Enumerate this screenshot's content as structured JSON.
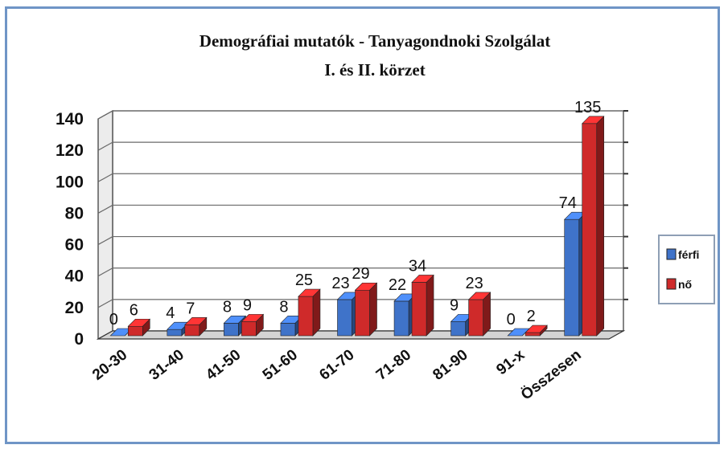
{
  "chart_data": {
    "type": "bar",
    "title": "Demográfiai mutatók - Tanyagondnoki Szolgálat",
    "subtitle": "I. és II. körzet",
    "categories": [
      "20-30",
      "31-40",
      "41-50",
      "51-60",
      "61-70",
      "71-80",
      "81-90",
      "91-x",
      "Összesen"
    ],
    "series": [
      {
        "name": "férfi",
        "values": [
          0,
          4,
          8,
          8,
          23,
          22,
          9,
          0,
          74
        ],
        "color": "#3f73c9"
      },
      {
        "name": "nő",
        "values": [
          6,
          7,
          9,
          25,
          29,
          34,
          23,
          2,
          135
        ],
        "color": "#cf2a2a"
      }
    ],
    "ylim": [
      0,
      140
    ],
    "yticks": [
      "0",
      "20",
      "40",
      "60",
      "80",
      "100",
      "120",
      "140"
    ],
    "grid": true,
    "legend": "right",
    "three_d": true
  }
}
